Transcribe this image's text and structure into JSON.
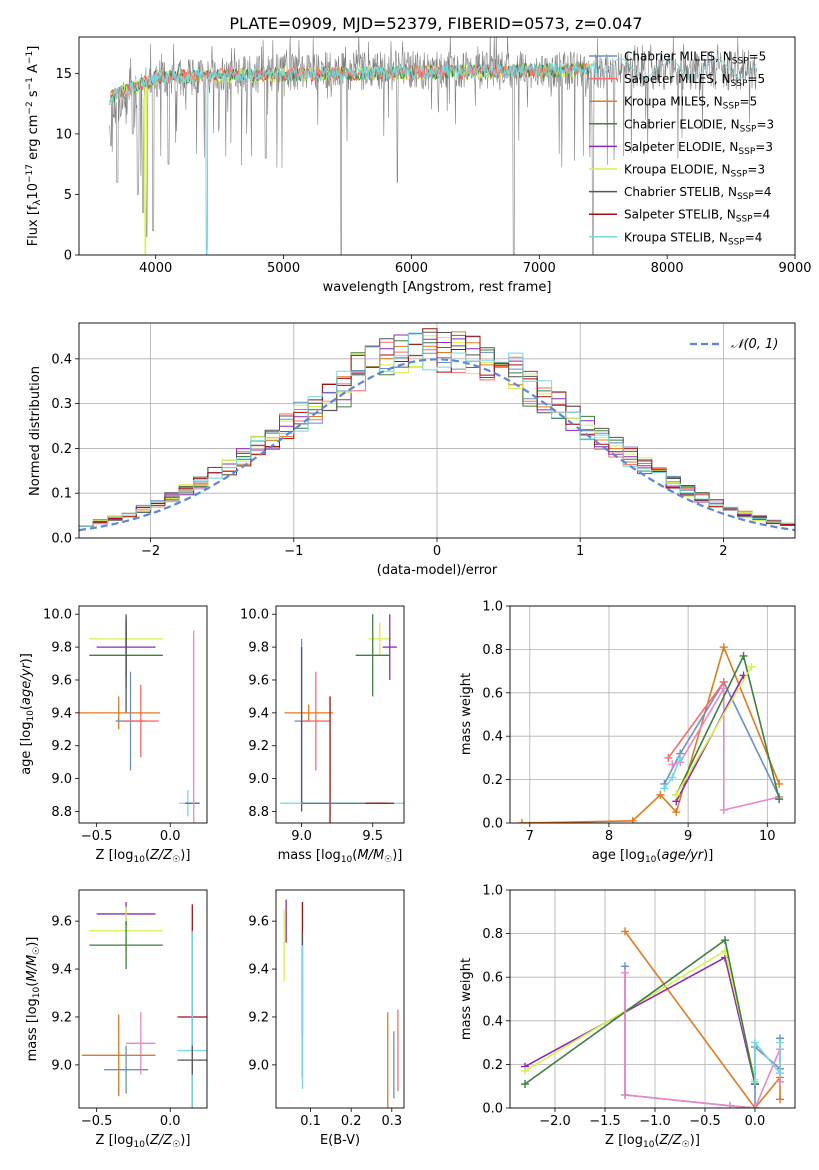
{
  "figure": {
    "title": "PLATE=0909, MJD=52379, FIBERID=0573, z=0.047"
  },
  "colors": {
    "Chabrier MILES": "#6b90c4",
    "Salpeter MILES": "#ff6a6a",
    "Kroupa MILES": "#e07b20",
    "Chabrier ELODIE": "#3f7f3f",
    "Salpeter ELODIE": "#8b2ab8",
    "Kroupa ELODIE": "#d6f050",
    "Chabrier STELIB": "#555555",
    "Salpeter STELIB": "#a01010",
    "Kroupa STELIB": "#76d7e0",
    "Chabrier MILES dark": "#4a6faa",
    "Chabrier ELODIE alt": "#5a8a6a",
    "Kroupa STELIB alt": "#88c8d8",
    "Salpeter MILES alt": "#e888c8",
    "grid": "#b0b0b0",
    "normal_curve": "#5a87d8"
  },
  "chart_data": [
    {
      "id": "spectrum",
      "type": "line",
      "title": "PLATE=0909, MJD=52379, FIBERID=0573, z=0.047",
      "xlabel": "wavelength [Angstrom, rest frame]",
      "ylabel": "Flux [f_λ10^-17 erg cm^-2 s^-1 A^-1]",
      "xlim": [
        3400,
        9000
      ],
      "ylim": [
        0,
        18
      ],
      "xticks": [
        4000,
        5000,
        6000,
        7000,
        8000,
        9000
      ],
      "yticks": [
        0,
        5,
        10,
        15
      ],
      "grid": false,
      "legend_position": "top-right",
      "observed_spectrum": {
        "x_range": [
          3640,
          8700
        ],
        "typical_flux": 15.5,
        "absorption_dips": [
          [
            3650,
            9
          ],
          [
            3700,
            6
          ],
          [
            3820,
            10
          ],
          [
            3860,
            5
          ],
          [
            3900,
            3.5
          ],
          [
            3930,
            1.5
          ],
          [
            3980,
            2
          ],
          [
            4100,
            7.5
          ],
          [
            4400,
            0.5
          ],
          [
            4860,
            8
          ],
          [
            5450,
            0
          ],
          [
            5890,
            6
          ],
          [
            6800,
            0
          ],
          [
            7420,
            0
          ]
        ]
      },
      "series": [
        {
          "name": "Chabrier MILES",
          "label": "Chabrier MILES, N",
          "sub": "SSP",
          "eq": "=5"
        },
        {
          "name": "Salpeter MILES",
          "label": "Salpeter MILES, N",
          "sub": "SSP",
          "eq": "=5"
        },
        {
          "name": "Kroupa MILES",
          "label": "Kroupa MILES, N",
          "sub": "SSP",
          "eq": "=5"
        },
        {
          "name": "Chabrier ELODIE",
          "label": "Chabrier ELODIE, N",
          "sub": "SSP",
          "eq": "=3"
        },
        {
          "name": "Salpeter ELODIE",
          "label": "Salpeter ELODIE, N",
          "sub": "SSP",
          "eq": "=3"
        },
        {
          "name": "Kroupa ELODIE",
          "label": "Kroupa ELODIE, N",
          "sub": "SSP",
          "eq": "=3"
        },
        {
          "name": "Chabrier STELIB",
          "label": "Chabrier STELIB, N",
          "sub": "SSP",
          "eq": "=4"
        },
        {
          "name": "Salpeter STELIB",
          "label": "Salpeter STELIB, N",
          "sub": "SSP",
          "eq": "=4"
        },
        {
          "name": "Kroupa STELIB",
          "label": "Kroupa STELIB, N",
          "sub": "SSP",
          "eq": "=4"
        }
      ]
    },
    {
      "id": "residuals",
      "type": "line",
      "xlabel": "(data-model)/error",
      "ylabel": "Normed distribution",
      "xlim": [
        -2.5,
        2.5
      ],
      "ylim": [
        0,
        0.48
      ],
      "xticks": [
        -2,
        -1,
        0,
        1,
        2
      ],
      "yticks": [
        0.0,
        0.1,
        0.2,
        0.3,
        0.4
      ],
      "grid": true,
      "legend_position": "top-right",
      "legend": "N(0,1)",
      "bin_width": 0.1,
      "histogram_series": [
        "Chabrier MILES",
        "Salpeter MILES",
        "Kroupa MILES",
        "Chabrier ELODIE",
        "Salpeter ELODIE",
        "Kroupa ELODIE",
        "Chabrier STELIB",
        "Salpeter STELIB",
        "Kroupa STELIB"
      ]
    },
    {
      "id": "age_vs_Z",
      "type": "scatter",
      "xlabel": "Z [log10(Z/Z☉)]",
      "ylabel": "age [log10(age/yr)]",
      "xlim": [
        -0.62,
        0.25
      ],
      "ylim": [
        8.73,
        10.05
      ],
      "xticks": [
        -0.5,
        0.0
      ],
      "yticks": [
        8.8,
        9.0,
        9.2,
        9.4,
        9.6,
        9.8,
        10.0
      ],
      "grid": false,
      "points": [
        {
          "series": "Kroupa ELODIE",
          "x": -0.3,
          "y": 9.85,
          "xerr": 0.25,
          "yerr": 0.06
        },
        {
          "series": "Chabrier ELODIE",
          "x": -0.3,
          "y": 9.75,
          "xerr": 0.25,
          "yerr": 0.2
        },
        {
          "series": "Salpeter ELODIE",
          "x": -0.3,
          "y": 9.8,
          "xerr": 0.2,
          "yerr": 0.18
        },
        {
          "series": "Chabrier STELIB",
          "x": -0.3,
          "y": 9.7,
          "xerr": 0.0,
          "yerr": 0.3
        },
        {
          "series": "Kroupa MILES",
          "x": -0.35,
          "y": 9.4,
          "xerr": 0.28,
          "yerr": 0.1
        },
        {
          "series": "Chabrier MILES",
          "x": -0.27,
          "y": 9.35,
          "xerr": 0.1,
          "yerr": 0.3
        },
        {
          "series": "Salpeter MILES",
          "x": -0.2,
          "y": 9.35,
          "xerr": 0.12,
          "yerr": 0.22
        },
        {
          "series": "Kroupa STELIB",
          "x": 0.12,
          "y": 8.85,
          "xerr": 0.06,
          "yerr": 0.08
        },
        {
          "series": "Chabrier MILES dark",
          "x": 0.15,
          "y": 8.85,
          "xerr": 0.05,
          "yerr": 0.0
        },
        {
          "series": "Salpeter MILES alt",
          "x": 0.16,
          "y": 9.1,
          "xerr": 0.0,
          "yerr": 0.8
        }
      ]
    },
    {
      "id": "age_vs_mass",
      "type": "scatter",
      "xlabel": "mass [log10(M/M☉)]",
      "ylabel": "",
      "xlim": [
        8.82,
        9.72
      ],
      "ylim": [
        8.73,
        10.05
      ],
      "xticks": [
        9.0,
        9.5
      ],
      "yticks": [
        8.8,
        9.0,
        9.2,
        9.4,
        9.6,
        9.8,
        10.0
      ],
      "grid": false,
      "points": [
        {
          "series": "Kroupa ELODIE",
          "x": 9.55,
          "y": 9.85,
          "xerr": 0.08,
          "yerr": 0.1
        },
        {
          "series": "Chabrier ELODIE",
          "x": 9.5,
          "y": 9.75,
          "xerr": 0.12,
          "yerr": 0.25
        },
        {
          "series": "Salpeter ELODIE",
          "x": 9.62,
          "y": 9.8,
          "xerr": 0.05,
          "yerr": 0.2
        },
        {
          "series": "Kroupa MILES",
          "x": 9.05,
          "y": 9.4,
          "xerr": 0.17,
          "yerr": 0.05
        },
        {
          "series": "Chabrier MILES",
          "x": 9.0,
          "y": 9.35,
          "xerr": 0.05,
          "yerr": 0.5
        },
        {
          "series": "Salpeter MILES",
          "x": 9.1,
          "y": 9.35,
          "xerr": 0.1,
          "yerr": 0.3
        },
        {
          "series": "Chabrier STELIB",
          "x": 9.0,
          "y": 9.3,
          "xerr": 0.0,
          "yerr": 0.5
        },
        {
          "series": "Salpeter STELIB",
          "x": 9.2,
          "y": 9.0,
          "xerr": 0.0,
          "yerr": 0.5
        },
        {
          "series": "Kroupa STELIB",
          "x": 9.3,
          "y": 8.85,
          "xerr": 0.45,
          "yerr": 0.0
        },
        {
          "series": "Chabrier MILES dark",
          "x": 9.3,
          "y": 8.85,
          "xerr": 0.3,
          "yerr": 0.0
        },
        {
          "series": "Salpeter STELIB",
          "x": 9.55,
          "y": 8.85,
          "xerr": 0.1,
          "yerr": 0.0
        }
      ]
    },
    {
      "id": "mass_weight_vs_age",
      "type": "line",
      "xlabel": "age [log10(age/yr)]",
      "ylabel": "mass weight",
      "xlim": [
        6.75,
        10.35
      ],
      "ylim": [
        0.0,
        1.0
      ],
      "xticks": [
        7,
        8,
        9,
        10
      ],
      "yticks": [
        0.0,
        0.2,
        0.4,
        0.6,
        0.8,
        1.0
      ],
      "grid": true,
      "series": [
        {
          "name": "Kroupa MILES",
          "x": [
            6.9,
            8.3,
            8.65,
            8.85,
            9.45,
            10.15
          ],
          "y": [
            0.0,
            0.01,
            0.13,
            0.05,
            0.81,
            0.18
          ]
        },
        {
          "name": "Chabrier MILES",
          "x": [
            8.7,
            8.9,
            9.45,
            10.15
          ],
          "y": [
            0.18,
            0.32,
            0.65,
            0.12
          ]
        },
        {
          "name": "Salpeter MILES alt",
          "x": [
            8.8,
            8.9,
            9.45,
            9.45,
            10.15
          ],
          "y": [
            0.27,
            0.28,
            0.62,
            0.06,
            0.12
          ]
        },
        {
          "name": "Chabrier ELODIE",
          "x": [
            8.85,
            9.7,
            10.15
          ],
          "y": [
            0.13,
            0.77,
            0.11
          ]
        },
        {
          "name": "Salpeter ELODIE",
          "x": [
            8.85,
            9.7
          ],
          "y": [
            0.1,
            0.68
          ]
        },
        {
          "name": "Kroupa ELODIE",
          "x": [
            8.85,
            9.8
          ],
          "y": [
            0.13,
            0.72
          ]
        },
        {
          "name": "Kroupa STELIB",
          "x": [
            8.7,
            8.8,
            8.9
          ],
          "y": [
            0.16,
            0.21,
            0.3
          ]
        },
        {
          "name": "Salpeter MILES",
          "x": [
            8.75,
            9.45
          ],
          "y": [
            0.3,
            0.65
          ]
        }
      ]
    },
    {
      "id": "mass_vs_Z",
      "type": "scatter",
      "xlabel": "Z [log10(Z/Z☉)]",
      "ylabel": "mass [log10(M/M☉)]",
      "xlim": [
        -0.62,
        0.25
      ],
      "ylim": [
        8.82,
        9.73
      ],
      "xticks": [
        -0.5,
        0.0
      ],
      "yticks": [
        9.0,
        9.2,
        9.4,
        9.6
      ],
      "grid": false,
      "points": [
        {
          "series": "Salpeter ELODIE",
          "x": -0.3,
          "y": 9.63,
          "xerr": 0.2,
          "yerr": 0.05
        },
        {
          "series": "Kroupa ELODIE",
          "x": -0.3,
          "y": 9.56,
          "xerr": 0.25,
          "yerr": 0.1
        },
        {
          "series": "Chabrier ELODIE",
          "x": -0.3,
          "y": 9.5,
          "xerr": 0.25,
          "yerr": 0.1
        },
        {
          "series": "Salpeter MILES alt",
          "x": -0.2,
          "y": 9.09,
          "xerr": 0.1,
          "yerr": 0.13
        },
        {
          "series": "Kroupa MILES",
          "x": -0.35,
          "y": 9.04,
          "xerr": 0.25,
          "yerr": 0.17
        },
        {
          "series": "Chabrier MILES",
          "x": -0.3,
          "y": 8.98,
          "xerr": 0.15,
          "yerr": 0.1
        },
        {
          "series": "Salpeter STELIB",
          "x": 0.15,
          "y": 9.2,
          "xerr": 0.1,
          "yerr": 0.47
        },
        {
          "series": "Kroupa STELIB",
          "x": 0.15,
          "y": 9.06,
          "xerr": 0.1,
          "yerr": 0.5
        },
        {
          "series": "Chabrier STELIB",
          "x": 0.15,
          "y": 9.02,
          "xerr": 0.1,
          "yerr": 0.06
        }
      ]
    },
    {
      "id": "mass_vs_EBV",
      "type": "scatter",
      "xlabel": "E(B-V)",
      "ylabel": "",
      "xlim": [
        0.015,
        0.33
      ],
      "ylim": [
        8.82,
        9.73
      ],
      "xticks": [
        0.1,
        0.2,
        0.3
      ],
      "yticks": [
        9.0,
        9.2,
        9.4,
        9.6
      ],
      "grid": false,
      "points": [
        {
          "series": "Salpeter ELODIE",
          "x": 0.04,
          "y": 9.6,
          "yerr": 0.09
        },
        {
          "series": "Kroupa ELODIE",
          "x": 0.035,
          "y": 9.5,
          "yerr": 0.15
        },
        {
          "series": "Salpeter STELIB",
          "x": 0.08,
          "y": 9.4,
          "yerr": 0.28
        },
        {
          "series": "Chabrier STELIB",
          "x": 0.08,
          "y": 9.25,
          "yerr": 0.3
        },
        {
          "series": "Kroupa STELIB",
          "x": 0.08,
          "y": 9.2,
          "yerr": 0.3
        },
        {
          "series": "Kroupa MILES",
          "x": 0.29,
          "y": 9.0,
          "yerr": 0.22
        },
        {
          "series": "Salpeter MILES",
          "x": 0.315,
          "y": 9.06,
          "yerr": 0.17
        },
        {
          "series": "Chabrier MILES",
          "x": 0.305,
          "y": 9.0,
          "yerr": 0.14
        }
      ]
    },
    {
      "id": "mass_weight_vs_Z",
      "type": "line",
      "xlabel": "Z [log10(Z/Z☉)]",
      "ylabel": "mass weight",
      "xlim": [
        -2.45,
        0.4
      ],
      "ylim": [
        0.0,
        1.0
      ],
      "xticks": [
        -2.0,
        -1.5,
        -1.0,
        -0.5,
        0.0
      ],
      "yticks": [
        0.0,
        0.2,
        0.4,
        0.6,
        0.8,
        1.0
      ],
      "grid": true,
      "series": [
        {
          "name": "Kroupa MILES",
          "x": [
            -1.3,
            0.0,
            0.25,
            0.25
          ],
          "y": [
            0.81,
            0.0,
            0.14,
            0.04
          ]
        },
        {
          "name": "Salpeter ELODIE",
          "x": [
            -2.3,
            -0.3,
            0.0
          ],
          "y": [
            0.19,
            0.69,
            0.11
          ]
        },
        {
          "name": "Kroupa ELODIE",
          "x": [
            -2.3,
            -0.3,
            0.0
          ],
          "y": [
            0.17,
            0.72,
            0.13
          ]
        },
        {
          "name": "Chabrier ELODIE",
          "x": [
            -2.3,
            -0.3,
            0.0
          ],
          "y": [
            0.11,
            0.77,
            0.11
          ]
        },
        {
          "name": "Chabrier MILES",
          "x": [
            -1.3,
            -1.3,
            -0.25,
            0.0,
            0.0,
            0.25,
            0.25
          ],
          "y": [
            0.65,
            0.06,
            0.01,
            0.0,
            0.28,
            0.18,
            0.32
          ]
        },
        {
          "name": "Salpeter MILES alt",
          "x": [
            -1.3,
            -1.3,
            -0.25,
            0.0,
            0.25,
            0.25
          ],
          "y": [
            0.62,
            0.06,
            0.01,
            0.0,
            0.27,
            0.12
          ]
        },
        {
          "name": "Kroupa STELIB",
          "x": [
            0.0,
            0.0,
            0.25,
            0.25
          ],
          "y": [
            0.12,
            0.3,
            0.16,
            0.3
          ]
        }
      ]
    }
  ]
}
